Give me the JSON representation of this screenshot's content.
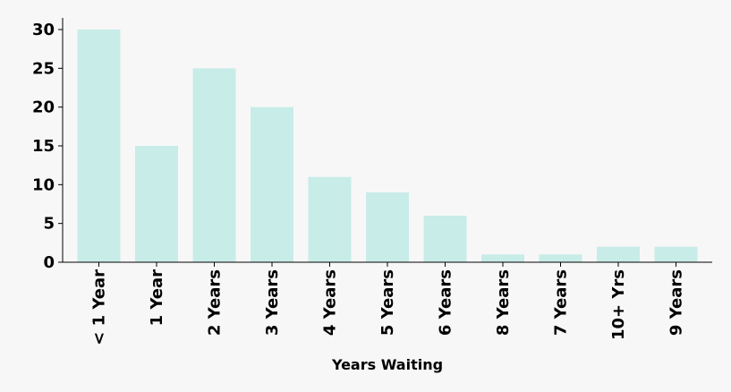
{
  "chart_data": {
    "type": "bar",
    "categories": [
      "< 1 Year",
      "1 Year",
      "2 Years",
      "3 Years",
      "4 Years",
      "5 Years",
      "6 Years",
      "8 Years",
      "7 Years",
      "10+ Yrs",
      "9 Years"
    ],
    "values": [
      30,
      15,
      25,
      20,
      11,
      9,
      6,
      1,
      1,
      2,
      2
    ],
    "xlabel": "Years Waiting",
    "ylabel": "",
    "ylim": [
      0,
      31.5
    ],
    "yticks": [
      0,
      5,
      10,
      15,
      20,
      25,
      30
    ],
    "grid": false,
    "colors": {
      "bar": "#c8ece8",
      "axis": "#000000",
      "background": "#f7f7f7"
    }
  }
}
